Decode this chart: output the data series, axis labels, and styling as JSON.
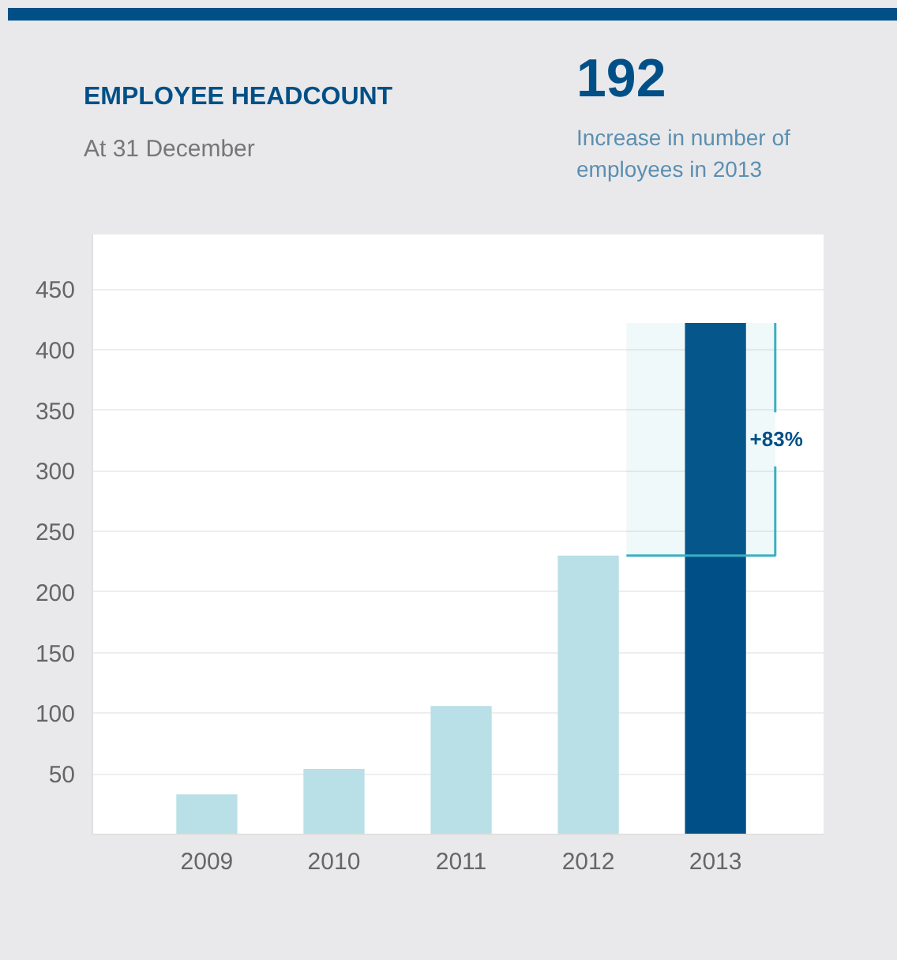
{
  "chart_data": {
    "type": "bar",
    "title": "EMPLOYEE HEADCOUNT",
    "subtitle": "At 31 December",
    "categories": [
      "2009",
      "2010",
      "2011",
      "2012",
      "2013"
    ],
    "values": [
      33,
      54,
      106,
      230,
      422
    ],
    "colors": [
      "#b8e0e6",
      "#b8e0e6",
      "#b8e0e6",
      "#b8e0e6",
      "#005087"
    ],
    "ylim": [
      0,
      495
    ],
    "yticks": [
      50,
      100,
      150,
      200,
      250,
      300,
      350,
      400,
      450
    ],
    "grid": "y",
    "bands": [
      {
        "axis": "y",
        "from": 230,
        "to": 422,
        "label": "+83%",
        "color": "#3ab0c0"
      }
    ],
    "annotations": [
      "192",
      "Increase in number of employees in 2013"
    ]
  }
}
